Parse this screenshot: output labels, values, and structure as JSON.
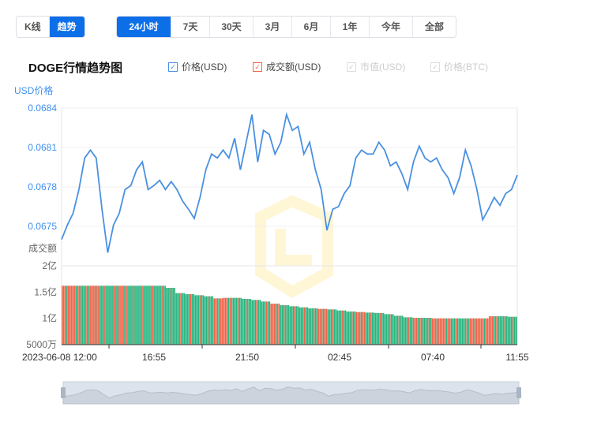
{
  "tabs_mode": [
    {
      "label": "K线",
      "active": false
    },
    {
      "label": "趋势",
      "active": true
    }
  ],
  "tabs_range": [
    {
      "label": "24小时",
      "active": true
    },
    {
      "label": "7天"
    },
    {
      "label": "30天"
    },
    {
      "label": "3月"
    },
    {
      "label": "6月"
    },
    {
      "label": "1年"
    },
    {
      "label": "今年"
    },
    {
      "label": "全部"
    }
  ],
  "title": "DOGE行情趋势图",
  "legend": [
    {
      "label": "价格(USD)",
      "checked": true,
      "color": "#4a90e2"
    },
    {
      "label": "成交额(USD)",
      "checked": true,
      "color": "#f0634a"
    },
    {
      "label": "市值(USD)",
      "checked": false
    },
    {
      "label": "价格(BTC)",
      "checked": false
    }
  ],
  "chart_data": {
    "type": "line",
    "price_axis_label": "USD价格",
    "volume_axis_label": "成交额",
    "price_ticks": [
      "0.0684",
      "0.0681",
      "0.0678",
      "0.0675"
    ],
    "price_ylim": [
      0.06735,
      0.0684
    ],
    "volume_ticks": [
      "2亿",
      "1.5亿",
      "1亿",
      "5000万"
    ],
    "volume_ylim": [
      50000000,
      200000000
    ],
    "x_ticks": [
      "2023-06-08 12:00",
      "16:55",
      "21:50",
      "02:45",
      "07:40",
      "11:55"
    ],
    "price_color": "#4a90e2",
    "up_color": "#26b57f",
    "down_color": "#f0634a",
    "price": [
      0.0674,
      0.06751,
      0.0676,
      0.06778,
      0.06802,
      0.06808,
      0.06802,
      0.06763,
      0.0673,
      0.06751,
      0.0676,
      0.06778,
      0.06781,
      0.06793,
      0.06799,
      0.06778,
      0.06781,
      0.06785,
      0.06778,
      0.06784,
      0.06778,
      0.06769,
      0.06763,
      0.06756,
      0.06772,
      0.06793,
      0.06805,
      0.06802,
      0.06808,
      0.06802,
      0.06817,
      0.06793,
      0.06814,
      0.06835,
      0.06799,
      0.06823,
      0.0682,
      0.06805,
      0.06814,
      0.06835,
      0.06823,
      0.06826,
      0.06805,
      0.06814,
      0.06793,
      0.06778,
      0.06747,
      0.06763,
      0.06765,
      0.06775,
      0.06781,
      0.06802,
      0.06808,
      0.06805,
      0.06805,
      0.06814,
      0.06808,
      0.06796,
      0.06799,
      0.0679,
      0.06778,
      0.06799,
      0.06811,
      0.06802,
      0.06799,
      0.06802,
      0.06793,
      0.06787,
      0.06775,
      0.06787,
      0.06808,
      0.06796,
      0.06778,
      0.06755,
      0.06763,
      0.06772,
      0.06766,
      0.06775,
      0.06778,
      0.06789
    ],
    "volume": [
      162000000,
      162000000,
      162000000,
      162000000,
      162000000,
      162000000,
      162000000,
      162000000,
      162000000,
      162000000,
      162000000,
      158000000,
      148000000,
      146000000,
      144000000,
      142000000,
      138000000,
      139000000,
      139000000,
      137000000,
      135000000,
      132000000,
      128000000,
      125000000,
      123000000,
      121000000,
      119000000,
      118000000,
      117000000,
      115000000,
      113000000,
      112000000,
      111000000,
      110000000,
      108000000,
      105000000,
      102000000,
      101000000,
      101000000,
      100000000,
      100000000,
      100000000,
      100000000,
      100000000,
      100000000,
      104000000,
      104000000,
      103000000
    ],
    "volume_dir": [
      "down",
      "down",
      "up",
      "down",
      "up",
      "up",
      "down",
      "up",
      "up",
      "up",
      "up",
      "up",
      "up",
      "up",
      "up",
      "up",
      "down",
      "down",
      "up",
      "up",
      "up",
      "up",
      "down",
      "up",
      "up",
      "up",
      "up",
      "down",
      "up",
      "up",
      "up",
      "down",
      "up",
      "up",
      "up",
      "up",
      "up",
      "down",
      "up",
      "down",
      "down",
      "up",
      "up",
      "down",
      "down",
      "down",
      "up",
      "up"
    ]
  }
}
